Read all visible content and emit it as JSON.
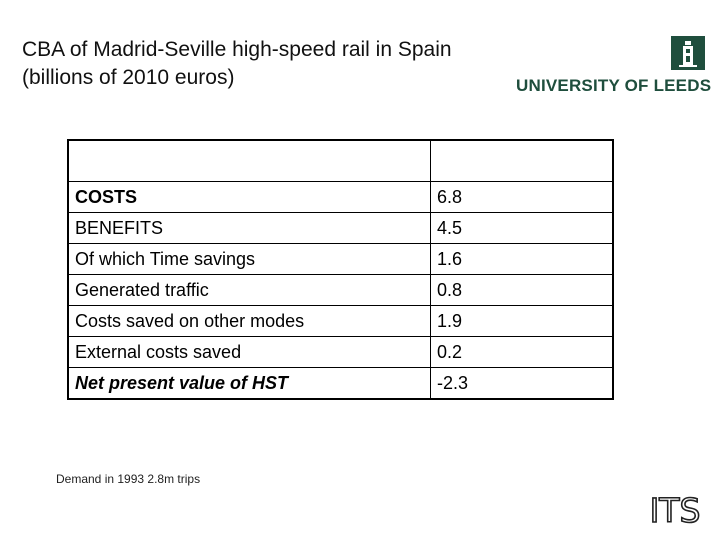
{
  "title": {
    "line1": "CBA of Madrid-Seville high-speed rail in Spain",
    "line2": "(billions of 2010 euros)"
  },
  "logo": {
    "university": "UNIVERSITY OF LEEDS",
    "its": "ITS"
  },
  "table": {
    "rows": [
      {
        "label": "COSTS",
        "value": "6.8"
      },
      {
        "label": "BENEFITS",
        "value": "4.5"
      },
      {
        "label": "Of which Time savings",
        "value": "1.6"
      },
      {
        "label": "Generated traffic",
        "value": "0.8"
      },
      {
        "label": "Costs saved on other modes",
        "value": "1.9"
      },
      {
        "label": "External costs saved",
        "value": "0.2"
      },
      {
        "label": "Net present value of HST",
        "value": "-2.3"
      }
    ]
  },
  "note": "Demand in 1993   2.8m trips",
  "colors": {
    "leeds_green": "#1f4e3d"
  }
}
